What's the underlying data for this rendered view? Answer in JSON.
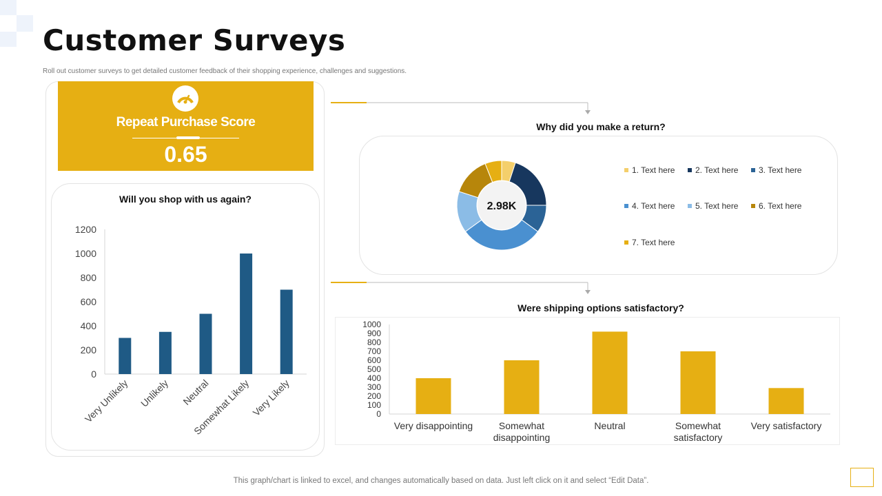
{
  "page": {
    "title": "Customer Surveys",
    "subtitle": "Roll out customer surveys to get detailed customer feedback of their shopping experience, challenges and suggestions.",
    "footer": "This graph/chart is linked to excel, and changes automatically based on data. Just left click on it and select “Edit Data”."
  },
  "score": {
    "label": "Repeat Purchase Score",
    "value": "0.65",
    "icon": "speedometer-icon"
  },
  "colors": {
    "accent": "#e6af13",
    "bar_blue": "#1f5a85",
    "bar_gold": "#e6af13"
  },
  "chart_data": [
    {
      "id": "shop_again",
      "type": "bar",
      "title": "Will you shop with us again?",
      "categories": [
        "Very Unlikely",
        "Unlikely",
        "Neutral",
        "Somewhat Likely",
        "Very Likely"
      ],
      "values": [
        300,
        350,
        500,
        1000,
        700
      ],
      "ylim": [
        0,
        1200
      ],
      "yticks": [
        0,
        200,
        400,
        600,
        800,
        1000,
        1200
      ],
      "xlabel": "",
      "ylabel": "",
      "color": "#1f5a85"
    },
    {
      "id": "return_reason",
      "type": "pie",
      "title": "Why did you make a return?",
      "center_label": "2.98K",
      "categories": [
        "1. Text here",
        "2. Text here",
        "3. Text here",
        "4. Text here",
        "5. Text here",
        "6. Text here",
        "7. Text here"
      ],
      "values": [
        5,
        20,
        10,
        30,
        15,
        14,
        6
      ],
      "colors": [
        "#f4cf6b",
        "#17375e",
        "#2b6396",
        "#4a90d0",
        "#8bbce6",
        "#b7860b",
        "#e6af13"
      ]
    },
    {
      "id": "shipping",
      "type": "bar",
      "title": "Were shipping options satisfactory?",
      "categories": [
        "Very disappointing",
        "Somewhat disappointing",
        "Neutral",
        "Somewhat satisfactory",
        "Very satisfactory"
      ],
      "values": [
        400,
        600,
        920,
        700,
        290
      ],
      "ylim": [
        0,
        1000
      ],
      "yticks": [
        0,
        100,
        200,
        300,
        400,
        500,
        600,
        700,
        800,
        900,
        1000
      ],
      "xlabel": "",
      "ylabel": "",
      "color": "#e6af13"
    }
  ]
}
